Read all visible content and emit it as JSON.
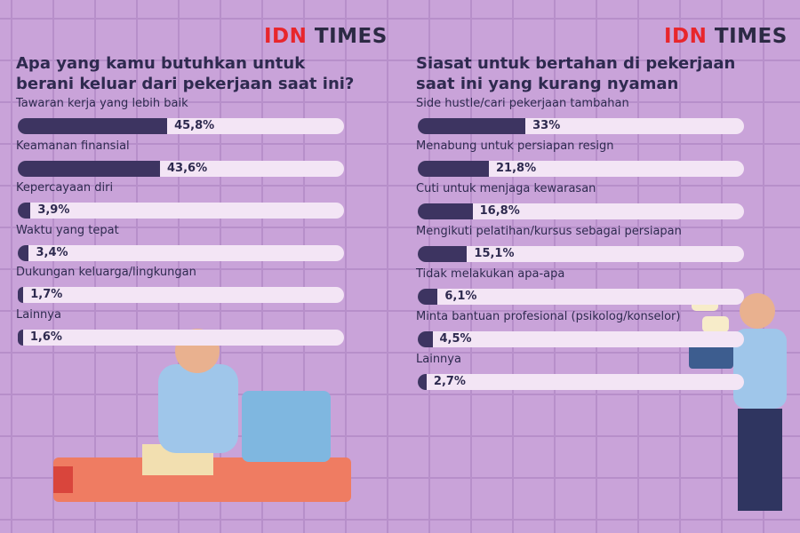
{
  "logos": [
    {
      "accent": "IDN",
      "text": "TIMES"
    },
    {
      "accent": "IDN",
      "text": "TIMES"
    }
  ],
  "chart_data": [
    {
      "type": "bar",
      "orientation": "horizontal",
      "title": "Apa yang kamu butuhkan untuk berani keluar dari pekerjaan saat ini?",
      "categories": [
        "Tawaran kerja yang lebih baik",
        "Keamanan finansial",
        "Kepercayaan diri",
        "Waktu yang tepat",
        "Dukungan keluarga/lingkungan",
        "Lainnya"
      ],
      "values": [
        45.8,
        43.6,
        3.9,
        3.4,
        1.7,
        1.6
      ],
      "value_labels": [
        "45,8%",
        "43,6%",
        "3,9%",
        "3,4%",
        "1,7%",
        "1,6%"
      ],
      "color": "#3d3461",
      "track_color": "#f3e5f5",
      "xlim": [
        0,
        100
      ]
    },
    {
      "type": "bar",
      "orientation": "horizontal",
      "title": "Siasat untuk bertahan di pekerjaan saat ini yang kurang nyaman",
      "categories": [
        "Side hustle/cari pekerjaan tambahan",
        "Menabung untuk persiapan resign",
        "Cuti untuk menjaga kewarasan",
        "Mengikuti pelatihan/kursus sebagai persiapan",
        "Tidak melakukan apa-apa",
        "Minta bantuan profesional (psikolog/konselor)",
        "Lainnya"
      ],
      "values": [
        33,
        21.8,
        16.8,
        15.1,
        6.1,
        4.5,
        2.7
      ],
      "value_labels": [
        "33%",
        "21,8%",
        "16,8%",
        "15,1%",
        "6,1%",
        "4,5%",
        "2,7%"
      ],
      "color": "#3d3461",
      "track_color": "#f3e5f5",
      "xlim": [
        0,
        100
      ]
    }
  ]
}
